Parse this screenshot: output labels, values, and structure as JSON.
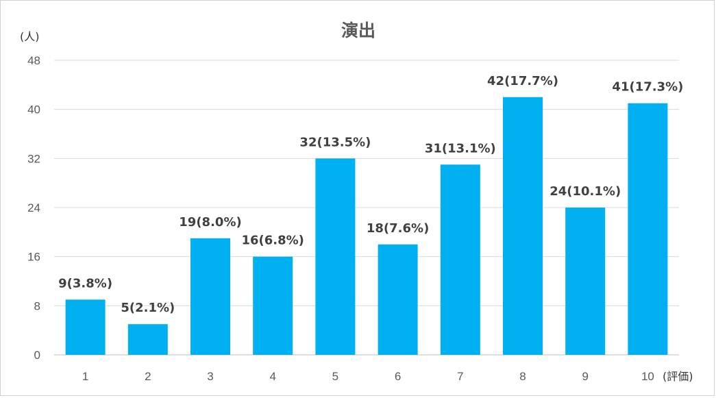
{
  "chart_data": {
    "type": "bar",
    "title": "演出",
    "ylabel": "(人)",
    "xlabel": "(評価)",
    "categories": [
      "1",
      "2",
      "3",
      "4",
      "5",
      "6",
      "7",
      "8",
      "9",
      "10"
    ],
    "values": [
      9,
      5,
      19,
      16,
      32,
      18,
      31,
      42,
      24,
      41
    ],
    "data_labels": [
      "9(3.8%)",
      "5(2.1%)",
      "19(8.0%)",
      "16(6.8%)",
      "32(13.5%)",
      "18(7.6%)",
      "31(13.1%)",
      "42(17.7%)",
      "24(10.1%)",
      "41(17.3%)"
    ],
    "yticks": [
      0,
      8,
      16,
      24,
      32,
      40,
      48
    ],
    "ylim": [
      0,
      48
    ],
    "grid": true,
    "legend": "none",
    "bar_color": "#00b0f0",
    "gridline_color": "#d9d9d9"
  }
}
